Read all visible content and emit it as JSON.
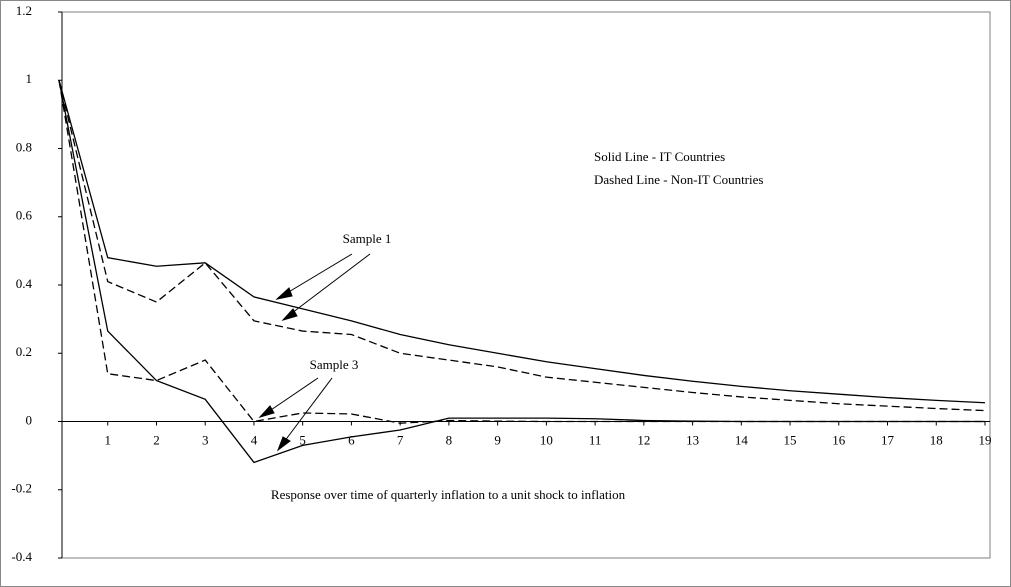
{
  "chart_data": {
    "type": "line",
    "annotations": [
      "Solid Line - IT Countries",
      "Dashed Line - Non-IT Countries",
      "Sample 1",
      "Sample 3",
      "Response over time of quarterly inflation to a unit shock to inflation"
    ],
    "x": [
      0,
      1,
      2,
      3,
      4,
      5,
      6,
      7,
      8,
      9,
      10,
      11,
      12,
      13,
      14,
      15,
      16,
      17,
      18,
      19
    ],
    "series": [
      {
        "style": "solid",
        "color": "#000000",
        "values": [
          1,
          0.48,
          0.455,
          0.465,
          0.365,
          0.33,
          0.295,
          0.255,
          0.225,
          0.2,
          0.175,
          0.155,
          0.135,
          0.118,
          0.103,
          0.09,
          0.08,
          0.07,
          0.062,
          0.055
        ]
      },
      {
        "style": "dashed",
        "color": "#000000",
        "values": [
          1,
          0.41,
          0.35,
          0.465,
          0.295,
          0.265,
          0.255,
          0.2,
          0.18,
          0.16,
          0.13,
          0.115,
          0.1,
          0.085,
          0.072,
          0.062,
          0.052,
          0.045,
          0.038,
          0.032
        ]
      },
      {
        "style": "solid",
        "color": "#000000",
        "values": [
          1,
          0.265,
          0.12,
          0.065,
          -0.12,
          -0.07,
          -0.045,
          -0.025,
          0.01,
          0.01,
          0.01,
          0.008,
          0.003,
          0.001,
          0,
          0,
          0,
          0,
          0,
          0
        ]
      },
      {
        "style": "dashed",
        "color": "#000000",
        "values": [
          1,
          0.14,
          0.12,
          0.18,
          0,
          0.025,
          0.022,
          -0.005,
          0.003,
          0.001,
          0,
          0,
          0,
          0,
          0,
          0,
          0,
          0,
          0,
          0
        ]
      }
    ],
    "xlim": [
      0,
      19
    ],
    "xticks": [
      1,
      2,
      3,
      4,
      5,
      6,
      7,
      8,
      9,
      10,
      11,
      12,
      13,
      14,
      15,
      16,
      17,
      18,
      19
    ],
    "ylim": [
      -0.4,
      1.2
    ],
    "yticks": [
      -0.4,
      -0.2,
      0,
      0.2,
      0.4,
      0.6,
      0.8,
      1,
      1.2
    ],
    "grid": false
  }
}
